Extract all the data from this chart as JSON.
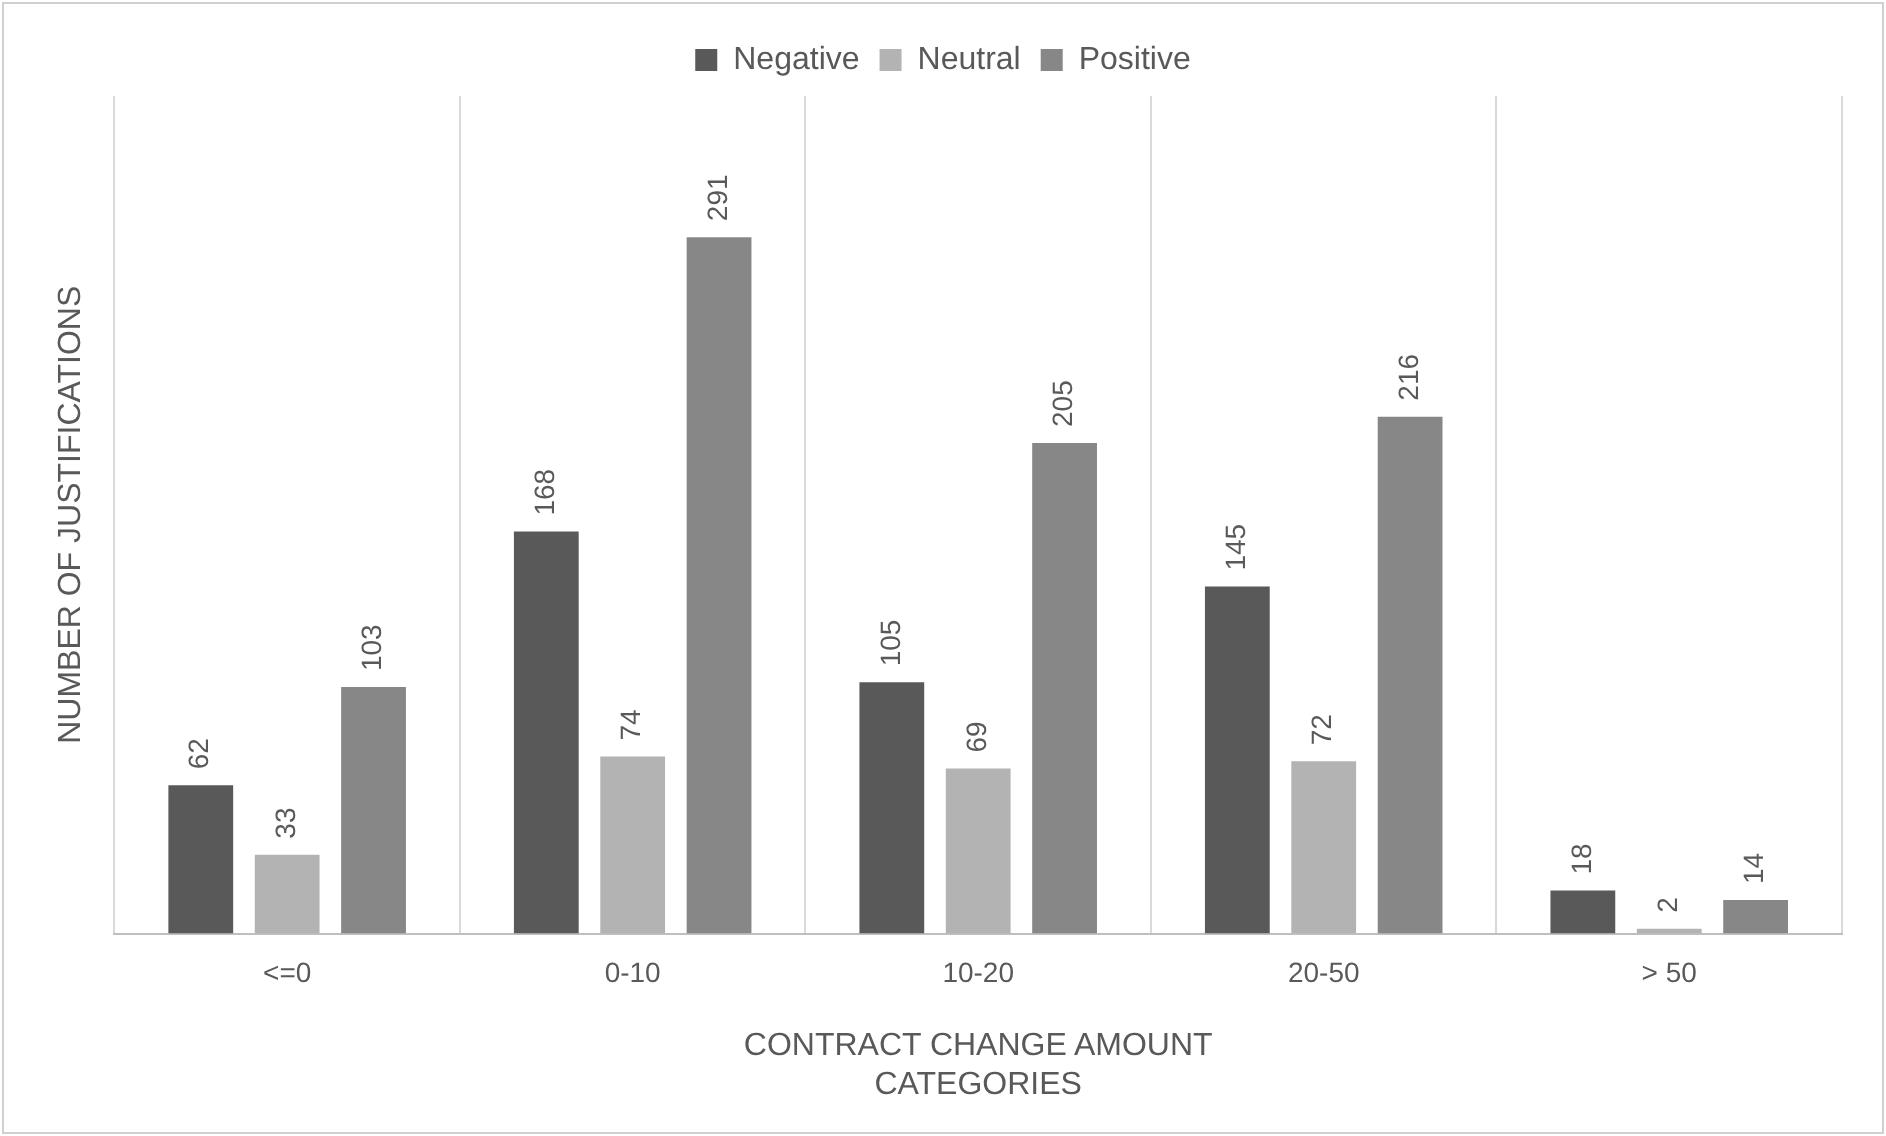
{
  "chart_data": {
    "type": "bar",
    "xlabel": "CONTRACT CHANGE AMOUNT\nCATEGORIES",
    "ylabel": "NUMBER OF JUSTIFICATIONS",
    "categories": [
      "<=0",
      "0-10",
      "10-20",
      "20-50",
      "> 50"
    ],
    "series": [
      {
        "name": "Negative",
        "color": "#595959",
        "values": [
          62,
          168,
          105,
          145,
          18
        ]
      },
      {
        "name": "Neutral",
        "color": "#b3b3b3",
        "values": [
          33,
          74,
          69,
          72,
          2
        ]
      },
      {
        "name": "Positive",
        "color": "#878787",
        "values": [
          103,
          291,
          205,
          216,
          14
        ]
      }
    ],
    "tick_labels": "x",
    "data_labels": true,
    "legend": "top",
    "grid": "x"
  }
}
